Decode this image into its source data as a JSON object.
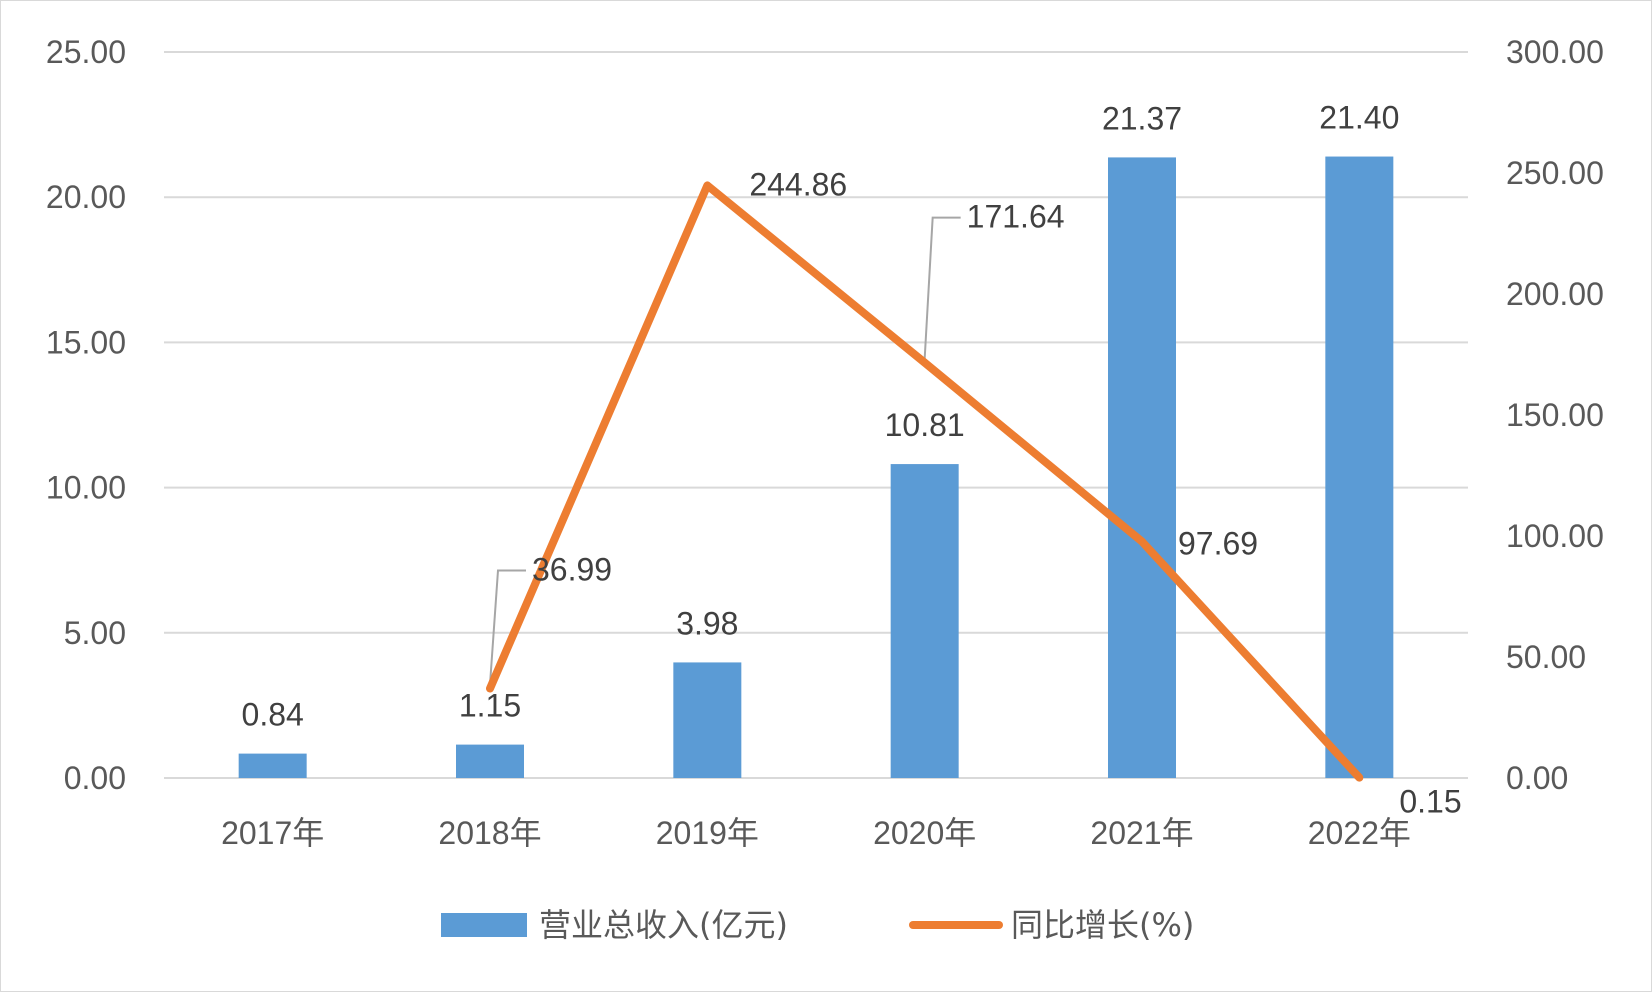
{
  "chart_data": {
    "type": "bar",
    "categories": [
      "2017年",
      "2018年",
      "2019年",
      "2020年",
      "2021年",
      "2022年"
    ],
    "series": [
      {
        "name": "营业总收入(亿元)",
        "type": "bar",
        "axis": "left",
        "color": "#5B9BD5",
        "values": [
          0.84,
          1.15,
          3.98,
          10.81,
          21.37,
          21.4
        ],
        "labels": [
          "0.84",
          "1.15",
          "3.98",
          "10.81",
          "21.37",
          "21.40"
        ]
      },
      {
        "name": "同比增长(%)",
        "type": "line",
        "axis": "right",
        "color": "#ED7D31",
        "values": [
          null,
          36.99,
          244.86,
          171.64,
          97.69,
          0.15
        ],
        "labels": [
          "",
          "36.99",
          "244.86",
          "171.64",
          "97.69",
          "0.15"
        ]
      }
    ],
    "y_left": {
      "ylim": [
        0,
        25
      ],
      "ticks": [
        "0.00",
        "5.00",
        "10.00",
        "15.00",
        "20.00",
        "25.00"
      ]
    },
    "y_right": {
      "ylim": [
        0,
        300
      ],
      "ticks": [
        "0.00",
        "50.00",
        "100.00",
        "150.00",
        "200.00",
        "250.00",
        "300.00"
      ]
    },
    "grid": true,
    "legend_position": "bottom",
    "title": "",
    "xlabel": "",
    "ylabel": ""
  }
}
